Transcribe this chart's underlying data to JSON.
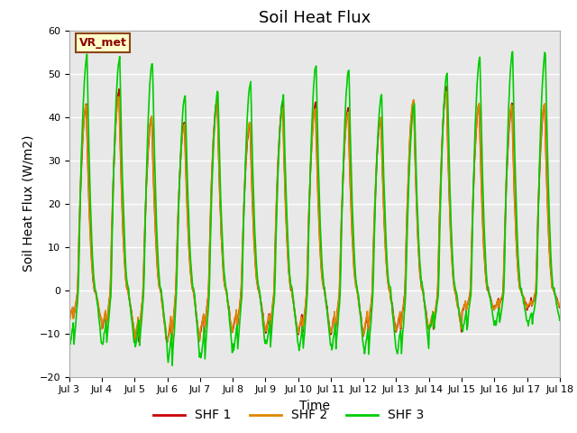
{
  "title": "Soil Heat Flux",
  "ylabel": "Soil Heat Flux (W/m2)",
  "xlabel": "Time",
  "ylim": [
    -20,
    60
  ],
  "xlim_days": [
    3,
    18
  ],
  "series_colors": [
    "#cc0000",
    "#dd8800",
    "#00cc00"
  ],
  "series_labels": [
    "SHF 1",
    "SHF 2",
    "SHF 3"
  ],
  "series_linewidths": [
    1.2,
    1.2,
    1.2
  ],
  "bg_color": "#e8e8e8",
  "fig_bg_color": "#ffffff",
  "vr_met_label": "VR_met",
  "grid_color": "#ffffff",
  "label_fontsize": 10,
  "title_fontsize": 13,
  "tick_fontsize": 8,
  "legend_fontsize": 10,
  "day_peaks_shf1": [
    43,
    46,
    40,
    39,
    44,
    39,
    43,
    43,
    42,
    40,
    44,
    47,
    43,
    43,
    43
  ],
  "day_peaks_shf2": [
    43,
    45,
    40,
    38,
    44,
    39,
    42,
    42,
    41,
    40,
    44,
    46,
    43,
    43,
    43
  ],
  "day_peaks_shf3": [
    54,
    54,
    53,
    45,
    46,
    48,
    45,
    52,
    51,
    45,
    43,
    50,
    54,
    55,
    55
  ],
  "day_mins_shf1": [
    -7,
    -9,
    -12,
    -12,
    -10,
    -9,
    -10,
    -10,
    -10,
    -10,
    -9,
    -9,
    -5,
    -4,
    -4
  ],
  "day_mins_shf2": [
    -7,
    -9,
    -12,
    -12,
    -10,
    -9,
    -10,
    -10,
    -10,
    -10,
    -9,
    -9,
    -5,
    -4,
    -4
  ],
  "day_mins_shf3": [
    -13,
    -13,
    -13,
    -17,
    -16,
    -14,
    -13,
    -14,
    -14,
    -15,
    -15,
    -9,
    -9,
    -8,
    -8
  ]
}
